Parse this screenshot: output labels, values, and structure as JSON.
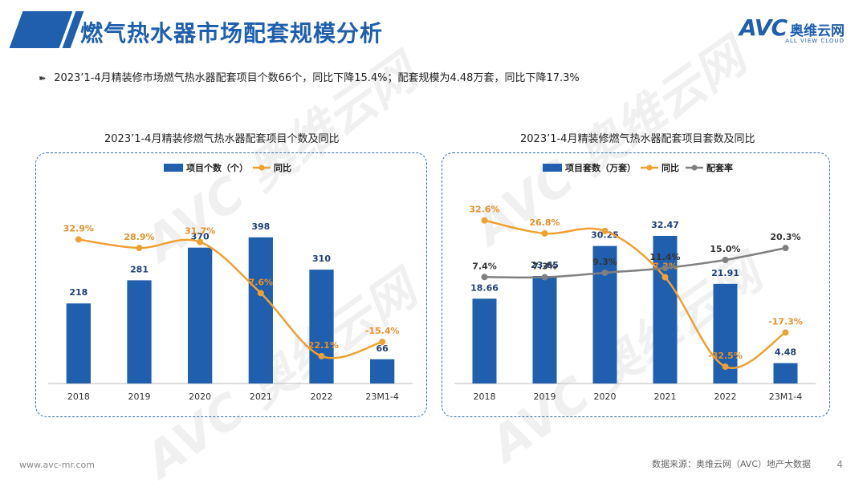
{
  "header": {
    "title": "燃气热水器市场配套规模分析"
  },
  "logo": {
    "mark": "AVC",
    "cn": "奥维云网",
    "en": "ALL VIEW CLOUD"
  },
  "bullet": {
    "arrow": "➽",
    "text": "2023’1-4月精装修市场燃气热水器配套项目个数66个，同比下降15.4%；配套规模为4.48万套，同比下降17.3%"
  },
  "watermark": {
    "text": "AVC 奥维云网"
  },
  "footer": {
    "url": "www.avc-mr.com",
    "source": "数据来源：奥维云网（AVC）地产大数据",
    "page": "4"
  },
  "colors": {
    "bar": "#1f5fae",
    "line": "#f0a030",
    "rate": "#808080",
    "title": "#1f5fae"
  },
  "chart_data": [
    {
      "type": "bar",
      "title": "2023’1-4月精装修燃气热水器配套项目个数及同比",
      "categories": [
        "2018",
        "2019",
        "2020",
        "2021",
        "2022",
        "23M1-4"
      ],
      "series": [
        {
          "name": "项目个数（个）",
          "kind": "bar",
          "values": [
            218,
            281,
            370,
            398,
            310,
            66
          ],
          "labels": [
            "218",
            "281",
            "370",
            "398",
            "310",
            "66"
          ]
        },
        {
          "name": "同比",
          "kind": "line",
          "values": [
            32.9,
            28.9,
            31.7,
            7.6,
            -22.1,
            -15.4
          ],
          "labels": [
            "32.9%",
            "28.9%",
            "31.7%",
            "7.6%",
            "-22.1%",
            "-15.4%"
          ]
        }
      ],
      "ylim_bar": [
        0,
        520
      ],
      "ylim_line": [
        -35,
        55
      ]
    },
    {
      "type": "bar",
      "title": "2023’1-4月精装修燃气热水器配套项目套数及同比",
      "categories": [
        "2018",
        "2019",
        "2020",
        "2021",
        "2022",
        "23M1-4"
      ],
      "series": [
        {
          "name": "项目套数（万套）",
          "kind": "bar",
          "values": [
            18.66,
            23.65,
            30.25,
            32.47,
            21.91,
            4.48
          ],
          "labels": [
            "18.66",
            "23.65",
            "30.25",
            "32.47",
            "21.91",
            "4.48"
          ]
        },
        {
          "name": "同比",
          "kind": "line",
          "values": [
            32.6,
            26.8,
            27.9,
            7.3,
            -32.5,
            -17.3
          ],
          "labels": [
            "32.6%",
            "26.8%",
            "",
            "7.3%",
            "-32.5%",
            "-17.3%"
          ]
        },
        {
          "name": "配套率",
          "kind": "line",
          "values": [
            7.4,
            7.3,
            9.3,
            11.4,
            15.0,
            20.3
          ],
          "labels": [
            "7.4%",
            "7.3%",
            "9.3%",
            "11.4%",
            "15.0%",
            "20.3%"
          ]
        }
      ],
      "ylim_bar": [
        0,
        42
      ],
      "ylim_line": [
        -40,
        45
      ]
    }
  ]
}
